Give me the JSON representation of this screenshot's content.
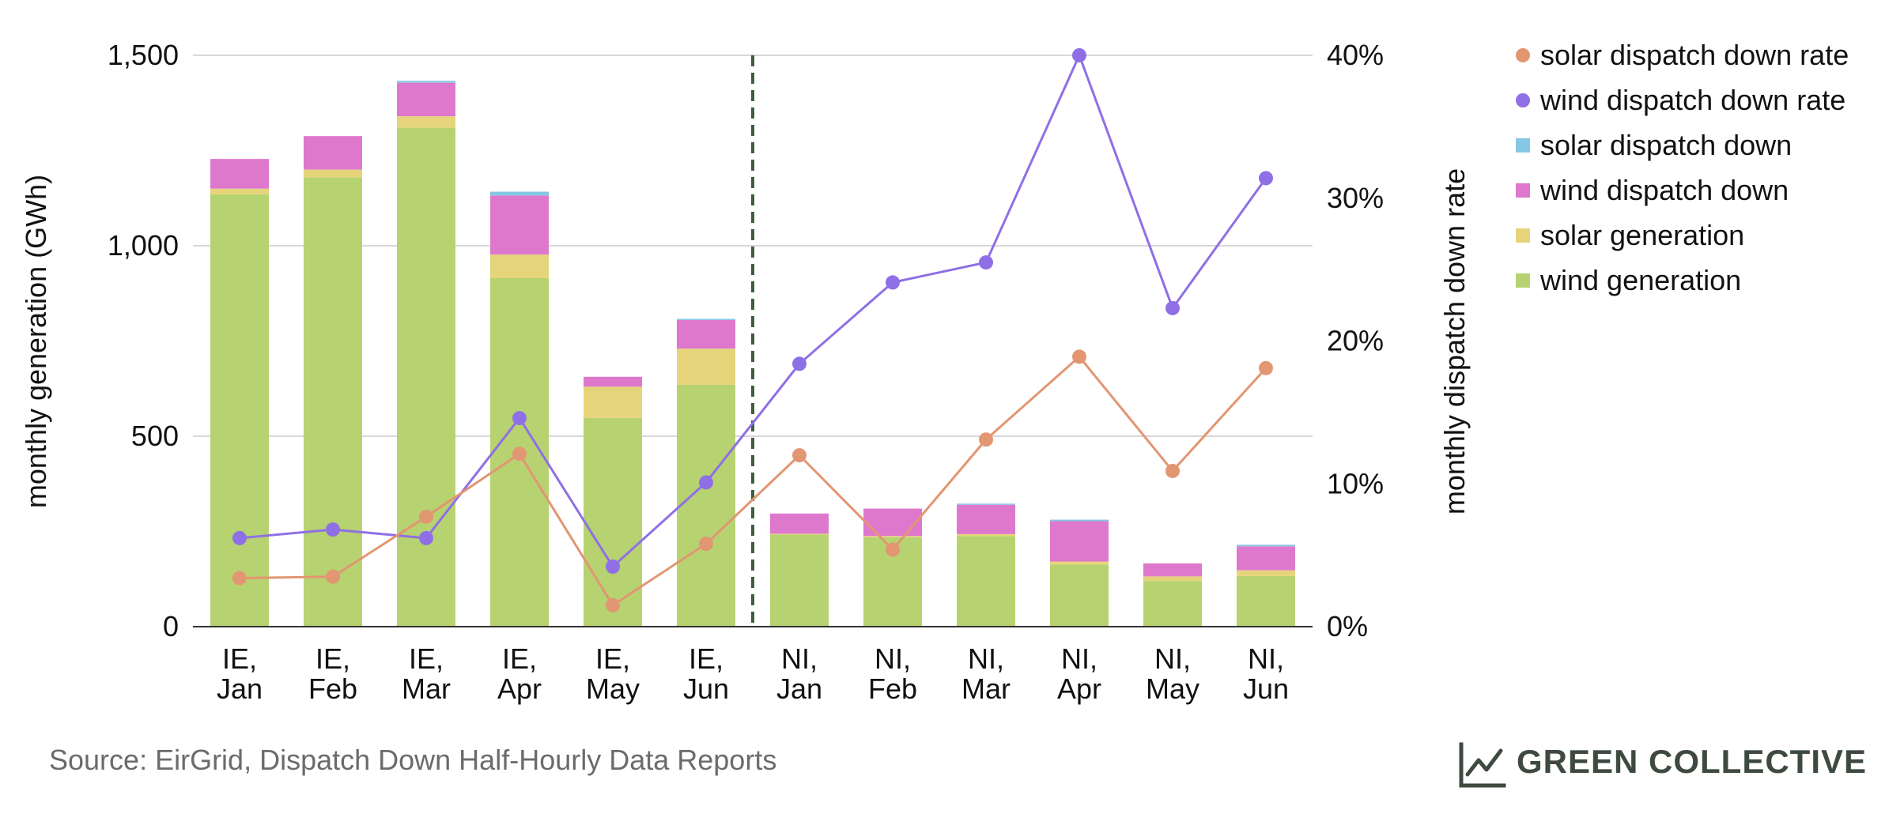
{
  "chart_data": {
    "type": "bar",
    "stacked": true,
    "categories": [
      [
        "IE,",
        "Jan"
      ],
      [
        "IE,",
        "Feb"
      ],
      [
        "IE,",
        "Mar"
      ],
      [
        "IE,",
        "Apr"
      ],
      [
        "IE,",
        "May"
      ],
      [
        "IE,",
        "Jun"
      ],
      [
        "NI,",
        "Jan"
      ],
      [
        "NI,",
        "Feb"
      ],
      [
        "NI,",
        "Mar"
      ],
      [
        "NI,",
        "Apr"
      ],
      [
        "NI,",
        "May"
      ],
      [
        "NI,",
        "Jun"
      ]
    ],
    "series": [
      {
        "name": "wind generation",
        "type": "bar",
        "axis": "left",
        "color": "#b7d270",
        "values": [
          1135,
          1180,
          1310,
          915,
          548,
          635,
          242,
          235,
          238,
          163,
          120,
          133
        ]
      },
      {
        "name": "solar generation",
        "type": "bar",
        "axis": "left",
        "color": "#e6d47b",
        "values": [
          15,
          20,
          30,
          62,
          82,
          95,
          2,
          3,
          5,
          8,
          12,
          15
        ]
      },
      {
        "name": "wind dispatch down",
        "type": "bar",
        "axis": "left",
        "color": "#de78cc",
        "values": [
          78,
          88,
          88,
          155,
          26,
          75,
          53,
          72,
          77,
          106,
          34,
          63
        ]
      },
      {
        "name": "solar dispatch down",
        "type": "bar",
        "axis": "left",
        "color": "#86c7e4",
        "values": [
          0,
          0,
          5,
          10,
          0,
          3,
          0,
          0,
          3,
          4,
          0,
          4
        ]
      },
      {
        "name": "wind dispatch down rate",
        "type": "line",
        "axis": "right",
        "color": "#8f6fe6",
        "values": [
          6.2,
          6.8,
          6.2,
          14.6,
          4.2,
          10.1,
          18.4,
          24.1,
          25.5,
          40.0,
          22.3,
          31.4
        ]
      },
      {
        "name": "solar dispatch down rate",
        "type": "line",
        "axis": "right",
        "color": "#e29672",
        "values": [
          3.4,
          3.5,
          7.7,
          12.1,
          1.5,
          5.8,
          12.0,
          5.4,
          13.1,
          18.9,
          10.9,
          18.1
        ]
      }
    ],
    "legend_order": [
      "solar dispatch down rate",
      "wind dispatch down rate",
      "solar dispatch down",
      "wind dispatch down",
      "solar generation",
      "wind generation"
    ],
    "legend_position": "right",
    "ylabel": "monthly generation (GWh)",
    "ylabel_right": "monthly dispatch down rate",
    "ylim": [
      0,
      1500
    ],
    "yticks": [
      "0",
      "500",
      "1,000",
      "1,500"
    ],
    "ylim_right": [
      0,
      40
    ],
    "yticks_right": [
      "0%",
      "10%",
      "20%",
      "30%",
      "40%"
    ],
    "divider_after_index": 5,
    "grid": true
  },
  "footer": {
    "source": "Source: EirGrid, Dispatch Down Half-Hourly Data Reports",
    "brand": "GREEN COLLECTIVE",
    "brand_icon": "line-chart-icon"
  }
}
